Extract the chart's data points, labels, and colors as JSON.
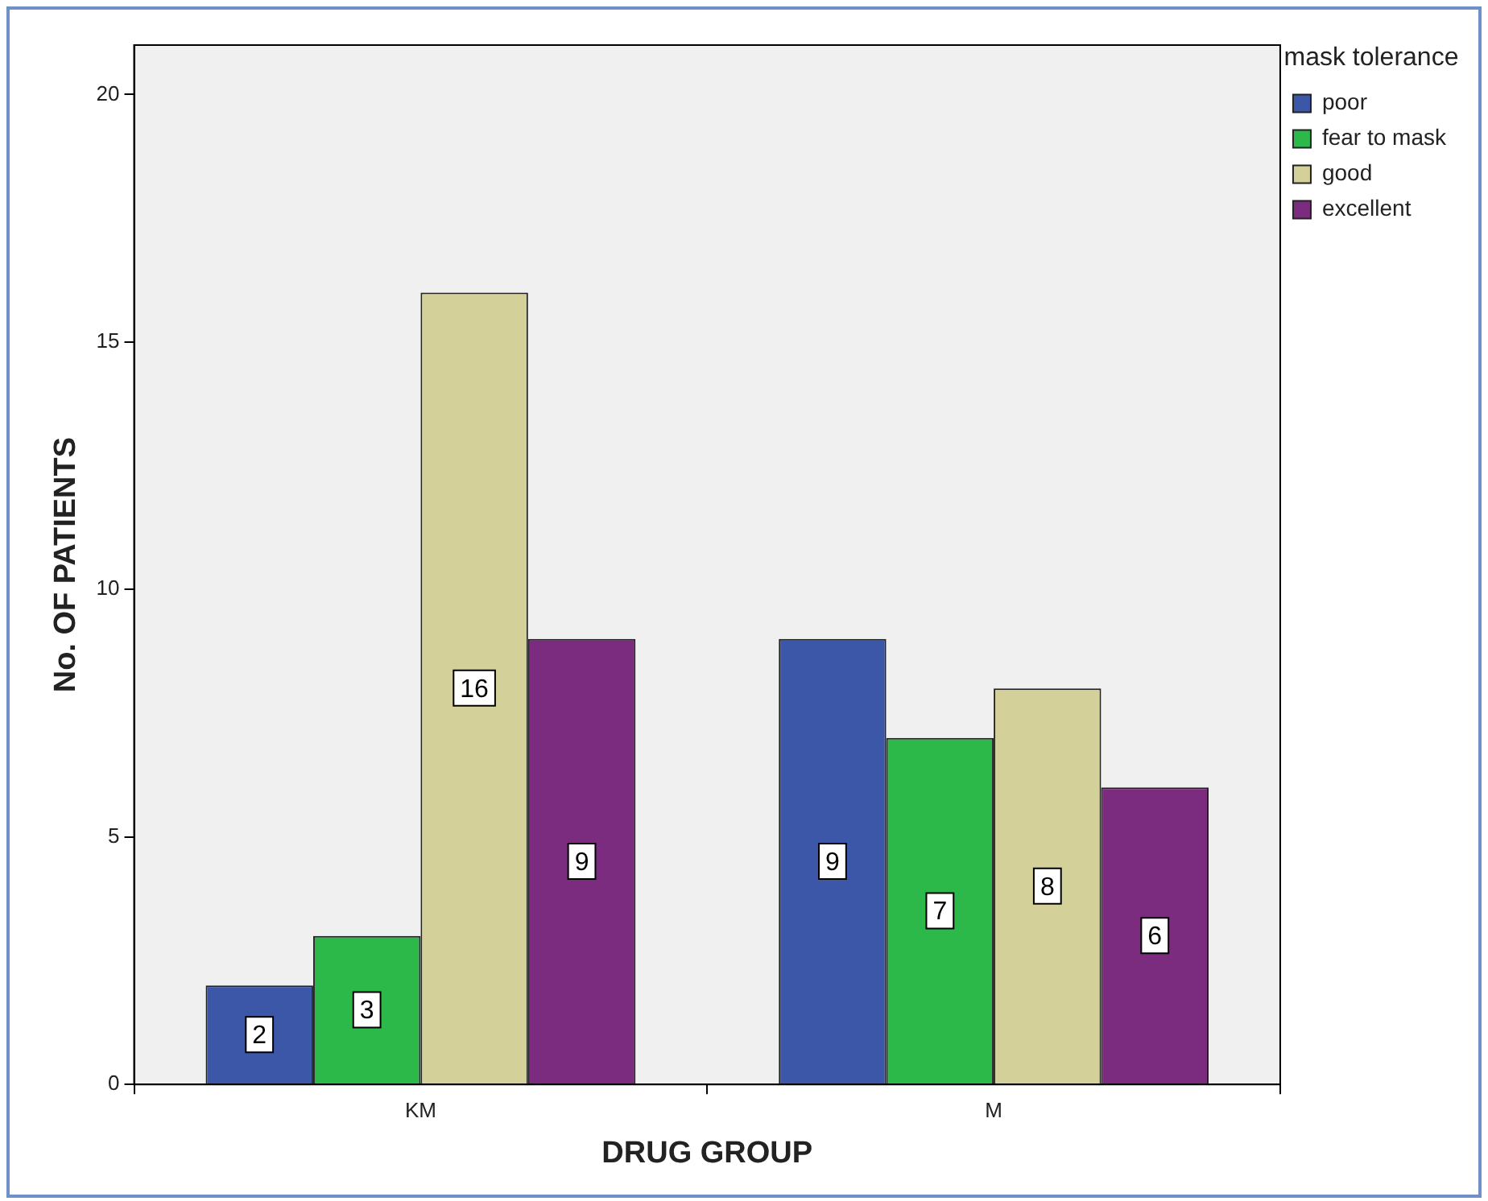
{
  "chart_data": {
    "type": "bar",
    "xlabel": "DRUG GROUP",
    "ylabel": "No. OF PATIENTS",
    "legend_title": "mask tolerance",
    "categories": [
      "KM",
      "M"
    ],
    "series": [
      {
        "name": "poor",
        "color": "#3c56a8",
        "values": [
          2,
          9
        ]
      },
      {
        "name": "fear to mask",
        "color": "#2db84a",
        "values": [
          3,
          7
        ]
      },
      {
        "name": "good",
        "color": "#d4d09a",
        "values": [
          16,
          8
        ]
      },
      {
        "name": "excellent",
        "color": "#7b2c7e",
        "values": [
          9,
          6
        ]
      }
    ],
    "ylim": [
      0,
      21
    ],
    "yticks": [
      0,
      5,
      10,
      15,
      20
    ],
    "grid": false,
    "legend": "top right",
    "data_labels": true
  }
}
